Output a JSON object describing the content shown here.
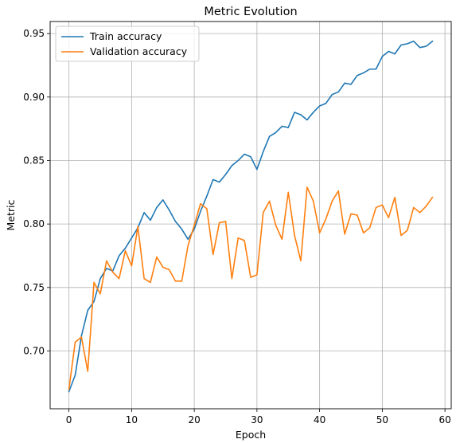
{
  "chart_data": {
    "type": "line",
    "title": "Metric Evolution",
    "xlabel": "Epoch",
    "ylabel": "Metric",
    "xlim": [
      -3,
      61
    ],
    "ylim": [
      0.6545,
      0.9595
    ],
    "xticks": [
      0,
      10,
      20,
      30,
      40,
      50,
      60
    ],
    "yticks": [
      0.7,
      0.75,
      0.8,
      0.85,
      0.9,
      0.95
    ],
    "grid": true,
    "legend_position": "top-left",
    "x": [
      0,
      1,
      2,
      3,
      4,
      5,
      6,
      7,
      8,
      9,
      10,
      11,
      12,
      13,
      14,
      15,
      16,
      17,
      18,
      19,
      20,
      21,
      22,
      23,
      24,
      25,
      26,
      27,
      28,
      29,
      30,
      31,
      32,
      33,
      34,
      35,
      36,
      37,
      38,
      39,
      40,
      41,
      42,
      43,
      44,
      45,
      46,
      47,
      48,
      49,
      50,
      51,
      52,
      53,
      54,
      55,
      56,
      57,
      58
    ],
    "series": [
      {
        "name": "Train accuracy",
        "color": "#1f77b4",
        "values": [
          0.668,
          0.681,
          0.712,
          0.732,
          0.739,
          0.757,
          0.765,
          0.763,
          0.775,
          0.781,
          0.789,
          0.797,
          0.809,
          0.803,
          0.813,
          0.819,
          0.811,
          0.802,
          0.796,
          0.788,
          0.796,
          0.81,
          0.822,
          0.835,
          0.833,
          0.839,
          0.846,
          0.85,
          0.855,
          0.853,
          0.843,
          0.857,
          0.869,
          0.872,
          0.877,
          0.876,
          0.888,
          0.886,
          0.882,
          0.888,
          0.893,
          0.895,
          0.902,
          0.904,
          0.911,
          0.91,
          0.917,
          0.919,
          0.922,
          0.922,
          0.932,
          0.936,
          0.934,
          0.941,
          0.942,
          0.944,
          0.939,
          0.94,
          0.944
        ]
      },
      {
        "name": "Validation accuracy",
        "color": "#ff7f0e",
        "values": [
          0.67,
          0.707,
          0.711,
          0.684,
          0.754,
          0.745,
          0.771,
          0.762,
          0.757,
          0.779,
          0.767,
          0.798,
          0.757,
          0.754,
          0.774,
          0.766,
          0.764,
          0.755,
          0.755,
          0.783,
          0.799,
          0.816,
          0.812,
          0.776,
          0.801,
          0.802,
          0.757,
          0.789,
          0.787,
          0.758,
          0.76,
          0.809,
          0.818,
          0.799,
          0.788,
          0.825,
          0.791,
          0.771,
          0.829,
          0.818,
          0.793,
          0.804,
          0.818,
          0.826,
          0.792,
          0.808,
          0.807,
          0.793,
          0.797,
          0.813,
          0.815,
          0.805,
          0.821,
          0.791,
          0.795,
          0.813,
          0.809,
          0.814,
          0.821
        ]
      }
    ]
  }
}
